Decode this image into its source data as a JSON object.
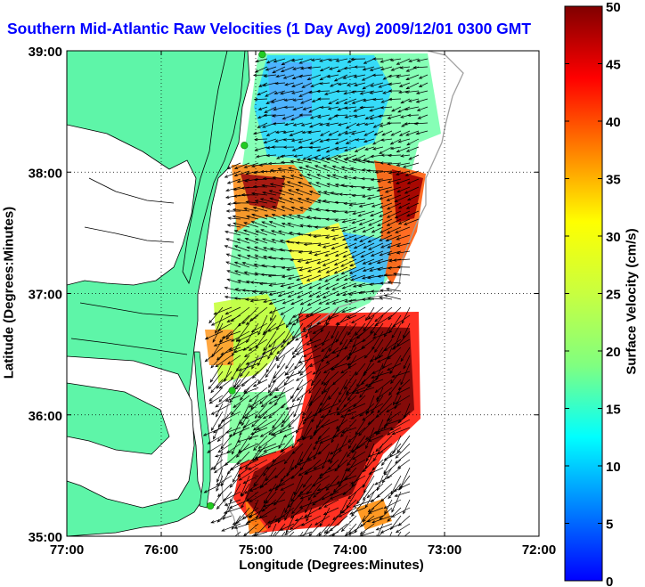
{
  "title": "Southern Mid-Atlantic Raw Velocities (1 Day Avg) 2009/12/01 0300 GMT",
  "xlabel": "Longitude (Degrees:Minutes)",
  "ylabel": "Latitude (Degrees:Minutes)",
  "colorbar_label": "Surface Velocity (cm/s)",
  "xticks": [
    "77:00",
    "76:00",
    "75:00",
    "74:00",
    "73:00",
    "72:00"
  ],
  "yticks": [
    "39:00",
    "38:00",
    "37:00",
    "36:00",
    "35:00"
  ],
  "colorbar_ticks": [
    "0",
    "5",
    "10",
    "15",
    "20",
    "25",
    "30",
    "35",
    "40",
    "45",
    "50"
  ],
  "colors": {
    "land": "#5ef5a8",
    "water_bg": "#ffffff",
    "title": "#0000ff",
    "arrows": "#000000",
    "coast_line": "#000000",
    "bathymetry_line": "#a0a0a0",
    "station_marker": "#22cc22"
  },
  "chart_data": {
    "type": "heatmap",
    "title": "Southern Mid-Atlantic Raw Velocities (1 Day Avg) 2009/12/01 0300 GMT",
    "xlabel": "Longitude (Degrees:Minutes)",
    "ylabel": "Latitude (Degrees:Minutes)",
    "colorbar_label": "Surface Velocity (cm/s)",
    "xlim": [
      -77,
      -72
    ],
    "ylim": [
      35,
      39
    ],
    "clim": [
      0,
      50
    ],
    "colormap": "jet",
    "grid": true,
    "grid_style": "dotted",
    "overlay": "velocity arrows",
    "stations": [
      {
        "lon": -74.93,
        "lat": 38.97
      },
      {
        "lon": -75.12,
        "lat": 38.22
      },
      {
        "lon": -75.25,
        "lat": 36.2
      },
      {
        "lon": -75.48,
        "lat": 35.25
      }
    ]
  }
}
